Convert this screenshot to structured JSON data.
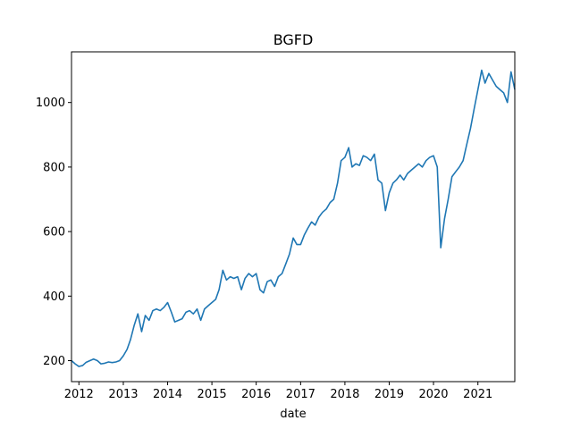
{
  "chart_data": {
    "type": "line",
    "title": "BGFD",
    "xlabel": "date",
    "ylabel": "",
    "grid": false,
    "legend": "none",
    "line_color": "#1f77b4",
    "xlim": [
      "2011-11-01",
      "2021-11-01"
    ],
    "ylim": [
      135,
      1157
    ],
    "x_ticks": [
      {
        "date": "2012-01-01",
        "label": "2012"
      },
      {
        "date": "2013-01-01",
        "label": "2013"
      },
      {
        "date": "2014-01-01",
        "label": "2014"
      },
      {
        "date": "2015-01-01",
        "label": "2015"
      },
      {
        "date": "2016-01-01",
        "label": "2016"
      },
      {
        "date": "2017-01-01",
        "label": "2017"
      },
      {
        "date": "2018-01-01",
        "label": "2018"
      },
      {
        "date": "2019-01-01",
        "label": "2019"
      },
      {
        "date": "2020-01-01",
        "label": "2020"
      },
      {
        "date": "2021-01-01",
        "label": "2021"
      }
    ],
    "y_ticks": [
      {
        "value": 200,
        "label": "200"
      },
      {
        "value": 400,
        "label": "400"
      },
      {
        "value": 600,
        "label": "600"
      },
      {
        "value": 800,
        "label": "800"
      },
      {
        "value": 1000,
        "label": "1000"
      }
    ],
    "series": [
      {
        "points": [
          [
            "2011-11-01",
            200
          ],
          [
            "2011-12-01",
            190
          ],
          [
            "2012-01-01",
            182
          ],
          [
            "2012-02-01",
            185
          ],
          [
            "2012-03-01",
            195
          ],
          [
            "2012-04-01",
            200
          ],
          [
            "2012-05-01",
            205
          ],
          [
            "2012-06-01",
            200
          ],
          [
            "2012-07-01",
            190
          ],
          [
            "2012-08-01",
            192
          ],
          [
            "2012-09-01",
            196
          ],
          [
            "2012-10-01",
            194
          ],
          [
            "2012-11-01",
            196
          ],
          [
            "2012-12-01",
            200
          ],
          [
            "2013-01-01",
            215
          ],
          [
            "2013-02-01",
            235
          ],
          [
            "2013-03-01",
            265
          ],
          [
            "2013-04-01",
            310
          ],
          [
            "2013-05-01",
            345
          ],
          [
            "2013-06-01",
            290
          ],
          [
            "2013-07-01",
            340
          ],
          [
            "2013-08-01",
            325
          ],
          [
            "2013-09-01",
            355
          ],
          [
            "2013-10-01",
            360
          ],
          [
            "2013-11-01",
            355
          ],
          [
            "2013-12-01",
            365
          ],
          [
            "2014-01-01",
            380
          ],
          [
            "2014-02-01",
            350
          ],
          [
            "2014-03-01",
            320
          ],
          [
            "2014-04-01",
            325
          ],
          [
            "2014-05-01",
            330
          ],
          [
            "2014-06-01",
            350
          ],
          [
            "2014-07-01",
            355
          ],
          [
            "2014-08-01",
            345
          ],
          [
            "2014-09-01",
            360
          ],
          [
            "2014-10-01",
            325
          ],
          [
            "2014-11-01",
            360
          ],
          [
            "2014-12-01",
            370
          ],
          [
            "2015-01-01",
            380
          ],
          [
            "2015-02-01",
            390
          ],
          [
            "2015-03-01",
            420
          ],
          [
            "2015-04-01",
            480
          ],
          [
            "2015-05-01",
            450
          ],
          [
            "2015-06-01",
            460
          ],
          [
            "2015-07-01",
            455
          ],
          [
            "2015-08-01",
            460
          ],
          [
            "2015-09-01",
            420
          ],
          [
            "2015-10-01",
            455
          ],
          [
            "2015-11-01",
            470
          ],
          [
            "2015-12-01",
            460
          ],
          [
            "2016-01-01",
            470
          ],
          [
            "2016-02-01",
            420
          ],
          [
            "2016-03-01",
            410
          ],
          [
            "2016-04-01",
            445
          ],
          [
            "2016-05-01",
            450
          ],
          [
            "2016-06-01",
            430
          ],
          [
            "2016-07-01",
            460
          ],
          [
            "2016-08-01",
            470
          ],
          [
            "2016-09-01",
            500
          ],
          [
            "2016-10-01",
            530
          ],
          [
            "2016-11-01",
            580
          ],
          [
            "2016-12-01",
            560
          ],
          [
            "2017-01-01",
            560
          ],
          [
            "2017-02-01",
            590
          ],
          [
            "2017-03-01",
            610
          ],
          [
            "2017-04-01",
            630
          ],
          [
            "2017-05-01",
            620
          ],
          [
            "2017-06-01",
            645
          ],
          [
            "2017-07-01",
            660
          ],
          [
            "2017-08-01",
            670
          ],
          [
            "2017-09-01",
            690
          ],
          [
            "2017-10-01",
            700
          ],
          [
            "2017-11-01",
            750
          ],
          [
            "2017-12-01",
            820
          ],
          [
            "2018-01-01",
            830
          ],
          [
            "2018-02-01",
            860
          ],
          [
            "2018-03-01",
            800
          ],
          [
            "2018-04-01",
            810
          ],
          [
            "2018-05-01",
            805
          ],
          [
            "2018-06-01",
            835
          ],
          [
            "2018-07-01",
            830
          ],
          [
            "2018-08-01",
            820
          ],
          [
            "2018-09-01",
            840
          ],
          [
            "2018-10-01",
            760
          ],
          [
            "2018-11-01",
            750
          ],
          [
            "2018-12-01",
            665
          ],
          [
            "2019-01-01",
            720
          ],
          [
            "2019-02-01",
            750
          ],
          [
            "2019-03-01",
            760
          ],
          [
            "2019-04-01",
            775
          ],
          [
            "2019-05-01",
            760
          ],
          [
            "2019-06-01",
            780
          ],
          [
            "2019-07-01",
            790
          ],
          [
            "2019-08-01",
            800
          ],
          [
            "2019-09-01",
            810
          ],
          [
            "2019-10-01",
            800
          ],
          [
            "2019-11-01",
            820
          ],
          [
            "2019-12-01",
            830
          ],
          [
            "2020-01-01",
            835
          ],
          [
            "2020-02-01",
            800
          ],
          [
            "2020-03-01",
            550
          ],
          [
            "2020-04-01",
            640
          ],
          [
            "2020-05-01",
            700
          ],
          [
            "2020-06-01",
            770
          ],
          [
            "2020-07-01",
            785
          ],
          [
            "2020-08-01",
            800
          ],
          [
            "2020-09-01",
            820
          ],
          [
            "2020-10-01",
            870
          ],
          [
            "2020-11-01",
            920
          ],
          [
            "2020-12-01",
            980
          ],
          [
            "2021-01-01",
            1040
          ],
          [
            "2021-02-01",
            1100
          ],
          [
            "2021-03-01",
            1060
          ],
          [
            "2021-04-01",
            1090
          ],
          [
            "2021-05-01",
            1070
          ],
          [
            "2021-06-01",
            1050
          ],
          [
            "2021-07-01",
            1040
          ],
          [
            "2021-08-01",
            1030
          ],
          [
            "2021-09-01",
            1000
          ],
          [
            "2021-10-01",
            1095
          ],
          [
            "2021-11-01",
            1040
          ]
        ]
      }
    ]
  }
}
